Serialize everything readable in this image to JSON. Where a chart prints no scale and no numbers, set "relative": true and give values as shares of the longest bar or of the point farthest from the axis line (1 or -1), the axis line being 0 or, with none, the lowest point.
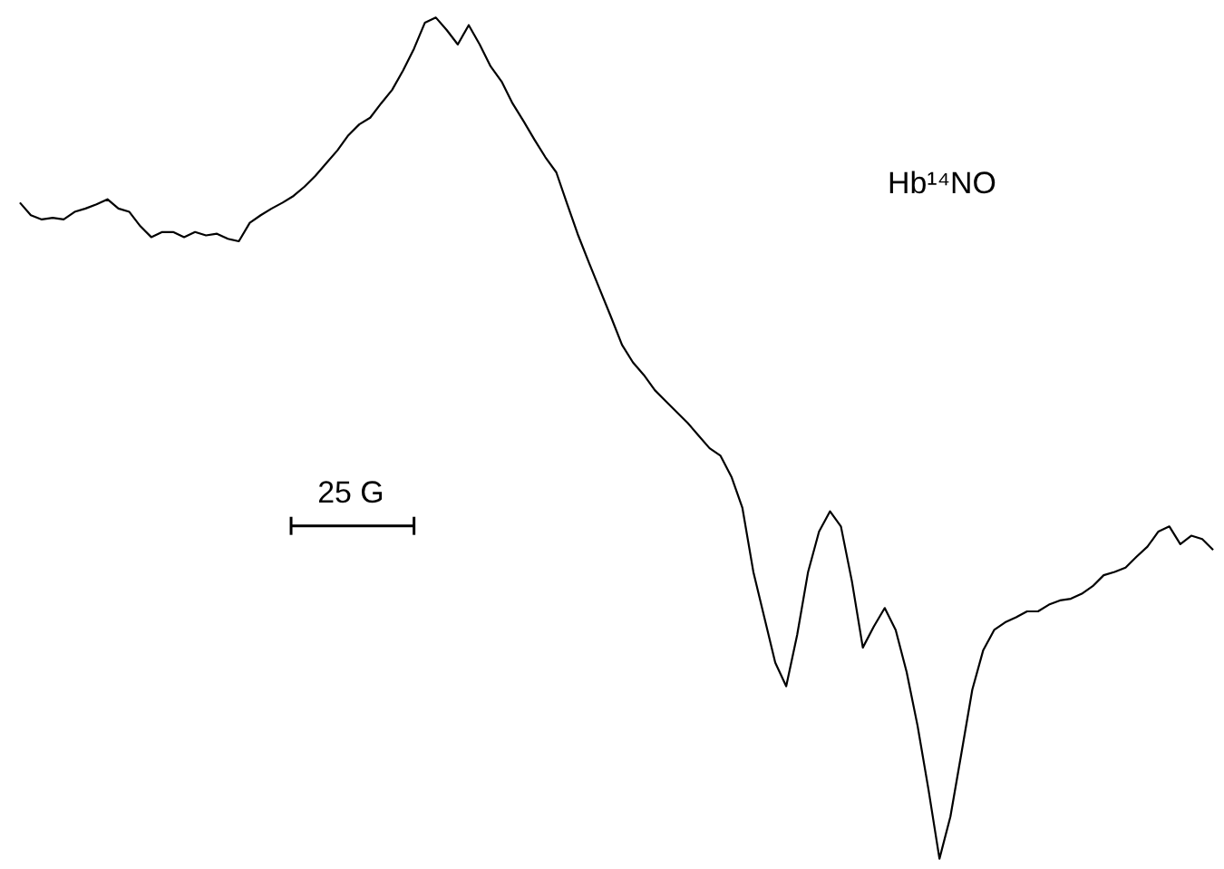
{
  "chart_data": {
    "type": "line",
    "relative": true,
    "categories": [
      null,
      null,
      null,
      null,
      null,
      null,
      null,
      null,
      null,
      null,
      null,
      null,
      null,
      null,
      null,
      null,
      null,
      null,
      null,
      null,
      null,
      null,
      null,
      null,
      null,
      null,
      null,
      null,
      null,
      null,
      null,
      null,
      null,
      null,
      null,
      null,
      null,
      null,
      null,
      null,
      null,
      null,
      null,
      null,
      null,
      null,
      null,
      null,
      null,
      null,
      null,
      null,
      null,
      null,
      null,
      null,
      null,
      null,
      null,
      null,
      null,
      null,
      null,
      null,
      null,
      null,
      null,
      null,
      null,
      null,
      null,
      null,
      null,
      null,
      null,
      null,
      null,
      null,
      null,
      null,
      null,
      null,
      null,
      null,
      null,
      null,
      null,
      null,
      null,
      null,
      null,
      null,
      null,
      null,
      null,
      null,
      null,
      null,
      null,
      null,
      null,
      null,
      null,
      null,
      null,
      null,
      null,
      null,
      null,
      null
    ],
    "series": [
      {
        "color": "#000000",
        "values": [
          0.78,
          0.765,
          0.76,
          0.762,
          0.76,
          0.769,
          0.773,
          0.778,
          0.784,
          0.773,
          0.769,
          0.752,
          0.739,
          0.745,
          0.745,
          0.739,
          0.745,
          0.741,
          0.743,
          0.737,
          0.734,
          0.756,
          0.765,
          0.773,
          0.78,
          0.788,
          0.799,
          0.812,
          0.827,
          0.842,
          0.86,
          0.873,
          0.881,
          0.898,
          0.914,
          0.937,
          0.963,
          0.994,
          1.0,
          0.985,
          0.968,
          0.991,
          0.968,
          0.942,
          0.924,
          0.898,
          0.877,
          0.855,
          0.834,
          0.816,
          0.778,
          0.741,
          0.708,
          0.676,
          0.644,
          0.611,
          0.59,
          0.575,
          0.557,
          0.544,
          0.531,
          0.518,
          0.503,
          0.488,
          0.479,
          0.454,
          0.417,
          0.341,
          0.287,
          0.233,
          0.205,
          0.266,
          0.341,
          0.389,
          0.413,
          0.395,
          0.33,
          0.251,
          0.276,
          0.298,
          0.272,
          0.222,
          0.158,
          0.082,
          0.0,
          0.05,
          0.125,
          0.201,
          0.248,
          0.272,
          0.281,
          0.287,
          0.294,
          0.294,
          0.302,
          0.307,
          0.309,
          0.315,
          0.324,
          0.337,
          0.341,
          0.346,
          0.359,
          0.371,
          0.389,
          0.395,
          0.374,
          0.384,
          0.38,
          0.367
        ]
      }
    ],
    "annotations": [
      "Hb¹⁴NO",
      "25 G"
    ],
    "marker": "none",
    "line_style": "solid"
  }
}
